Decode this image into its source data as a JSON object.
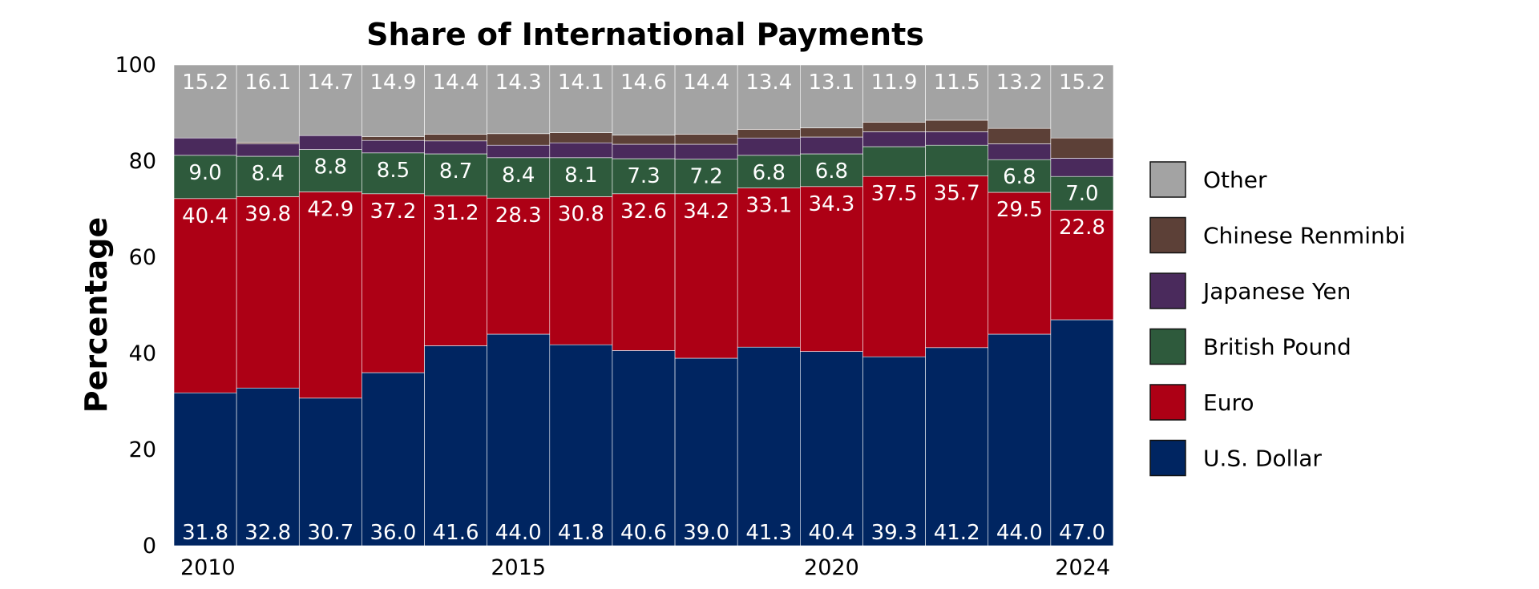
{
  "chart_data": {
    "type": "bar",
    "stacked": true,
    "title": "Share of International Payments",
    "xlabel": "",
    "ylabel": "Percentage",
    "ylim": [
      0,
      100
    ],
    "yticks": [
      0,
      20,
      40,
      60,
      80,
      100
    ],
    "categories": [
      "2010",
      "2011",
      "2012",
      "2013",
      "2014",
      "2015",
      "2016",
      "2017",
      "2018",
      "2019",
      "2020",
      "2021",
      "2022",
      "2023",
      "2024"
    ],
    "xtick_labels": [
      "2010",
      "",
      "",
      "",
      "",
      "2015",
      "",
      "",
      "",
      "",
      "2020",
      "",
      "",
      "",
      "2024"
    ],
    "legend_position": "right",
    "grid": false,
    "series": [
      {
        "name": "U.S. Dollar",
        "color": "#002561",
        "values": [
          31.8,
          32.8,
          30.7,
          36.0,
          41.6,
          44.0,
          41.8,
          40.6,
          39.0,
          41.3,
          40.4,
          39.3,
          41.2,
          44.0,
          47.0
        ],
        "labels": [
          "31.8",
          "32.8",
          "30.7",
          "36.0",
          "41.6",
          "44.0",
          "41.8",
          "40.6",
          "39.0",
          "41.3",
          "40.4",
          "39.3",
          "41.2",
          "44.0",
          "47.0"
        ]
      },
      {
        "name": "Euro",
        "color": "#AD0015",
        "values": [
          40.4,
          39.8,
          42.9,
          37.2,
          31.2,
          28.3,
          30.8,
          32.6,
          34.2,
          33.1,
          34.3,
          37.5,
          35.7,
          29.5,
          22.8
        ],
        "labels": [
          "40.4",
          "39.8",
          "42.9",
          "37.2",
          "31.2",
          "28.3",
          "30.8",
          "32.6",
          "34.2",
          "33.1",
          "34.3",
          "37.5",
          "35.7",
          "29.5",
          "22.8"
        ]
      },
      {
        "name": "British Pound",
        "color": "#2E5A3C",
        "values": [
          9.0,
          8.4,
          8.8,
          8.5,
          8.7,
          8.4,
          8.1,
          7.3,
          7.2,
          6.8,
          6.8,
          6.2,
          6.4,
          6.8,
          7.0
        ],
        "labels": [
          "9.0",
          "8.4",
          "8.8",
          "8.5",
          "8.7",
          "8.4",
          "8.1",
          "7.3",
          "7.2",
          "6.8",
          "6.8",
          "",
          "",
          "6.8",
          "7.0"
        ]
      },
      {
        "name": "Japanese Yen",
        "color": "#4A2A5C",
        "values": [
          3.6,
          2.6,
          2.9,
          2.6,
          2.7,
          2.6,
          3.1,
          3.0,
          3.1,
          3.6,
          3.5,
          3.1,
          2.8,
          3.3,
          3.8
        ],
        "labels": [
          "",
          "",
          "",
          "",
          "",
          "",
          "",
          "",
          "",
          "",
          "",
          "",
          "",
          "",
          ""
        ]
      },
      {
        "name": "Chinese Renminbi",
        "color": "#5C4037",
        "values": [
          0.0,
          0.3,
          0.0,
          0.8,
          1.4,
          2.4,
          2.1,
          1.9,
          2.1,
          1.8,
          1.9,
          2.0,
          2.4,
          3.2,
          4.2
        ],
        "labels": [
          "",
          "",
          "",
          "",
          "",
          "",
          "",
          "",
          "",
          "",
          "",
          "",
          "",
          "",
          ""
        ]
      },
      {
        "name": "Other",
        "color": "#A3A3A3",
        "values": [
          15.2,
          16.1,
          14.7,
          14.9,
          14.4,
          14.3,
          14.1,
          14.6,
          14.4,
          13.4,
          13.1,
          11.9,
          11.5,
          13.2,
          15.2
        ],
        "labels": [
          "15.2",
          "16.1",
          "14.7",
          "14.9",
          "14.4",
          "14.3",
          "14.1",
          "14.6",
          "14.4",
          "13.4",
          "13.1",
          "11.9",
          "11.5",
          "13.2",
          "15.2"
        ]
      }
    ],
    "legend_order": [
      "Other",
      "Chinese Renminbi",
      "Japanese Yen",
      "British Pound",
      "Euro",
      "U.S. Dollar"
    ]
  }
}
